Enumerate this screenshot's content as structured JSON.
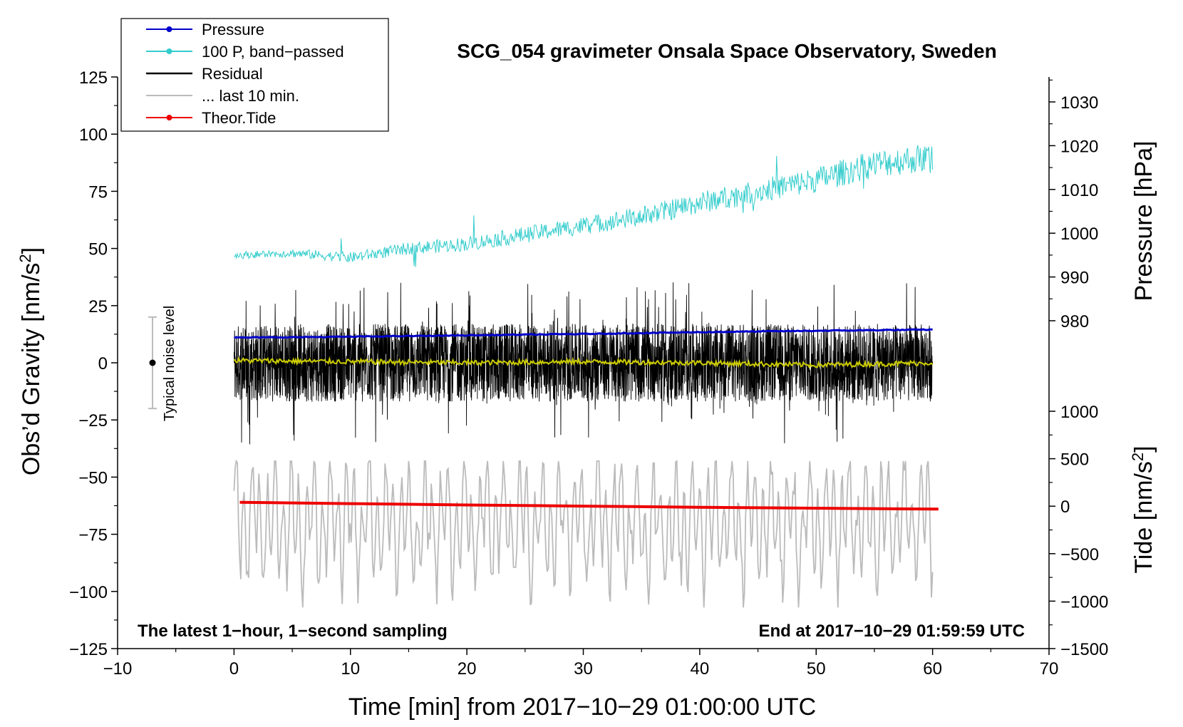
{
  "chart_data": {
    "type": "line",
    "title": "SCG_054 gravimeter Onsala Space Observatory, Sweden",
    "xlabel": "Time [min] from 2017−10−29 01:00:00 UTC",
    "ylabel_left_main": "Obs’d Gravity [nm/s",
    "ylabel_left_sup": "2",
    "ylabel_left_end": "]",
    "ylabel_right_pressure": "Pressure [hPa]",
    "ylabel_right_tide_main": "Tide [nm/s",
    "ylabel_right_tide_sup": "2",
    "ylabel_right_tide_end": "]",
    "xlim": [
      -10,
      70
    ],
    "ylim": [
      -125,
      125
    ],
    "pressure_axis_range": [
      968,
      1035
    ],
    "tide_axis_range": [
      -1500,
      1000
    ],
    "x_ticks": [
      -10,
      0,
      10,
      20,
      30,
      40,
      50,
      60,
      70
    ],
    "x_tick_labels": [
      "−10",
      "0",
      "10",
      "20",
      "30",
      "40",
      "50",
      "60",
      "70"
    ],
    "y_ticks": [
      125,
      100,
      75,
      50,
      25,
      0,
      -25,
      -50,
      -75,
      -100,
      -125
    ],
    "y_tick_labels": [
      "125",
      "100",
      "75",
      "50",
      "25",
      "0",
      "−25",
      "−50",
      "−75",
      "−100",
      "−125"
    ],
    "pressure_ticks": [
      1030,
      1020,
      1010,
      1000,
      990,
      980
    ],
    "pressure_tick_labels": [
      "1030",
      "1020",
      "1010",
      "1000",
      "990",
      "980"
    ],
    "tide_ticks": [
      1000,
      500,
      0,
      -500,
      -1000,
      -1500
    ],
    "tide_tick_labels": [
      "1000",
      "500",
      "0",
      "−500",
      "−1000",
      "−1500"
    ],
    "annotation_left": "The latest 1−hour, 1−second sampling",
    "annotation_right": "End at 2017−10−29 01:59:59 UTC",
    "noise_label": "Typical noise level",
    "noise_range": [
      -20,
      20
    ],
    "noise_x": -7,
    "legend": [
      {
        "label": "Pressure",
        "color": "#0000cc",
        "marker": true
      },
      {
        "label": "100 P, band−passed",
        "color": "#33cccc",
        "marker": true
      },
      {
        "label": "Residual",
        "color": "#000000",
        "marker": false
      },
      {
        "label": "... last 10 min.",
        "color": "#bbbbbb",
        "marker": false
      },
      {
        "label": "Theor.Tide",
        "color": "#ee0000",
        "marker": true
      }
    ],
    "series": [
      {
        "name": "Pressure",
        "color": "#0000cc",
        "x": [
          0,
          10,
          20,
          30,
          40,
          50,
          60
        ],
        "values": [
          11,
          11.4,
          12,
          12.6,
          13.4,
          14,
          14.5
        ]
      },
      {
        "name": "100 P, band−passed",
        "color": "#33cccc",
        "x": [
          0,
          5,
          10,
          15,
          20,
          25,
          30,
          35,
          40,
          45,
          50,
          55,
          60
        ],
        "values": [
          47,
          48,
          46,
          50,
          52,
          56,
          60,
          64,
          70,
          75,
          80,
          87,
          90
        ]
      },
      {
        "name": "Residual",
        "color": "#000000",
        "x": [
          0,
          60
        ],
        "values": [
          0,
          0
        ],
        "amplitude_range": [
          -44,
          43
        ]
      },
      {
        "name": "Residual smoothed",
        "color": "#cccc00",
        "x": [
          0,
          10,
          20,
          30,
          40,
          50,
          60
        ],
        "values": [
          1,
          0.5,
          0,
          0.5,
          0,
          -1,
          0
        ]
      },
      {
        "name": "... last 10 min.",
        "color": "#bbbbbb",
        "x": [
          0,
          60
        ],
        "values": [
          -70,
          -70
        ],
        "amplitude_range": [
          -107,
          -43
        ]
      },
      {
        "name": "Theor.Tide",
        "color": "#ee0000",
        "x": [
          0.5,
          10,
          20,
          30,
          40,
          50,
          60.5
        ],
        "values": [
          -61,
          -61.6,
          -62.2,
          -62.7,
          -63.2,
          -63.6,
          -64
        ]
      }
    ]
  }
}
